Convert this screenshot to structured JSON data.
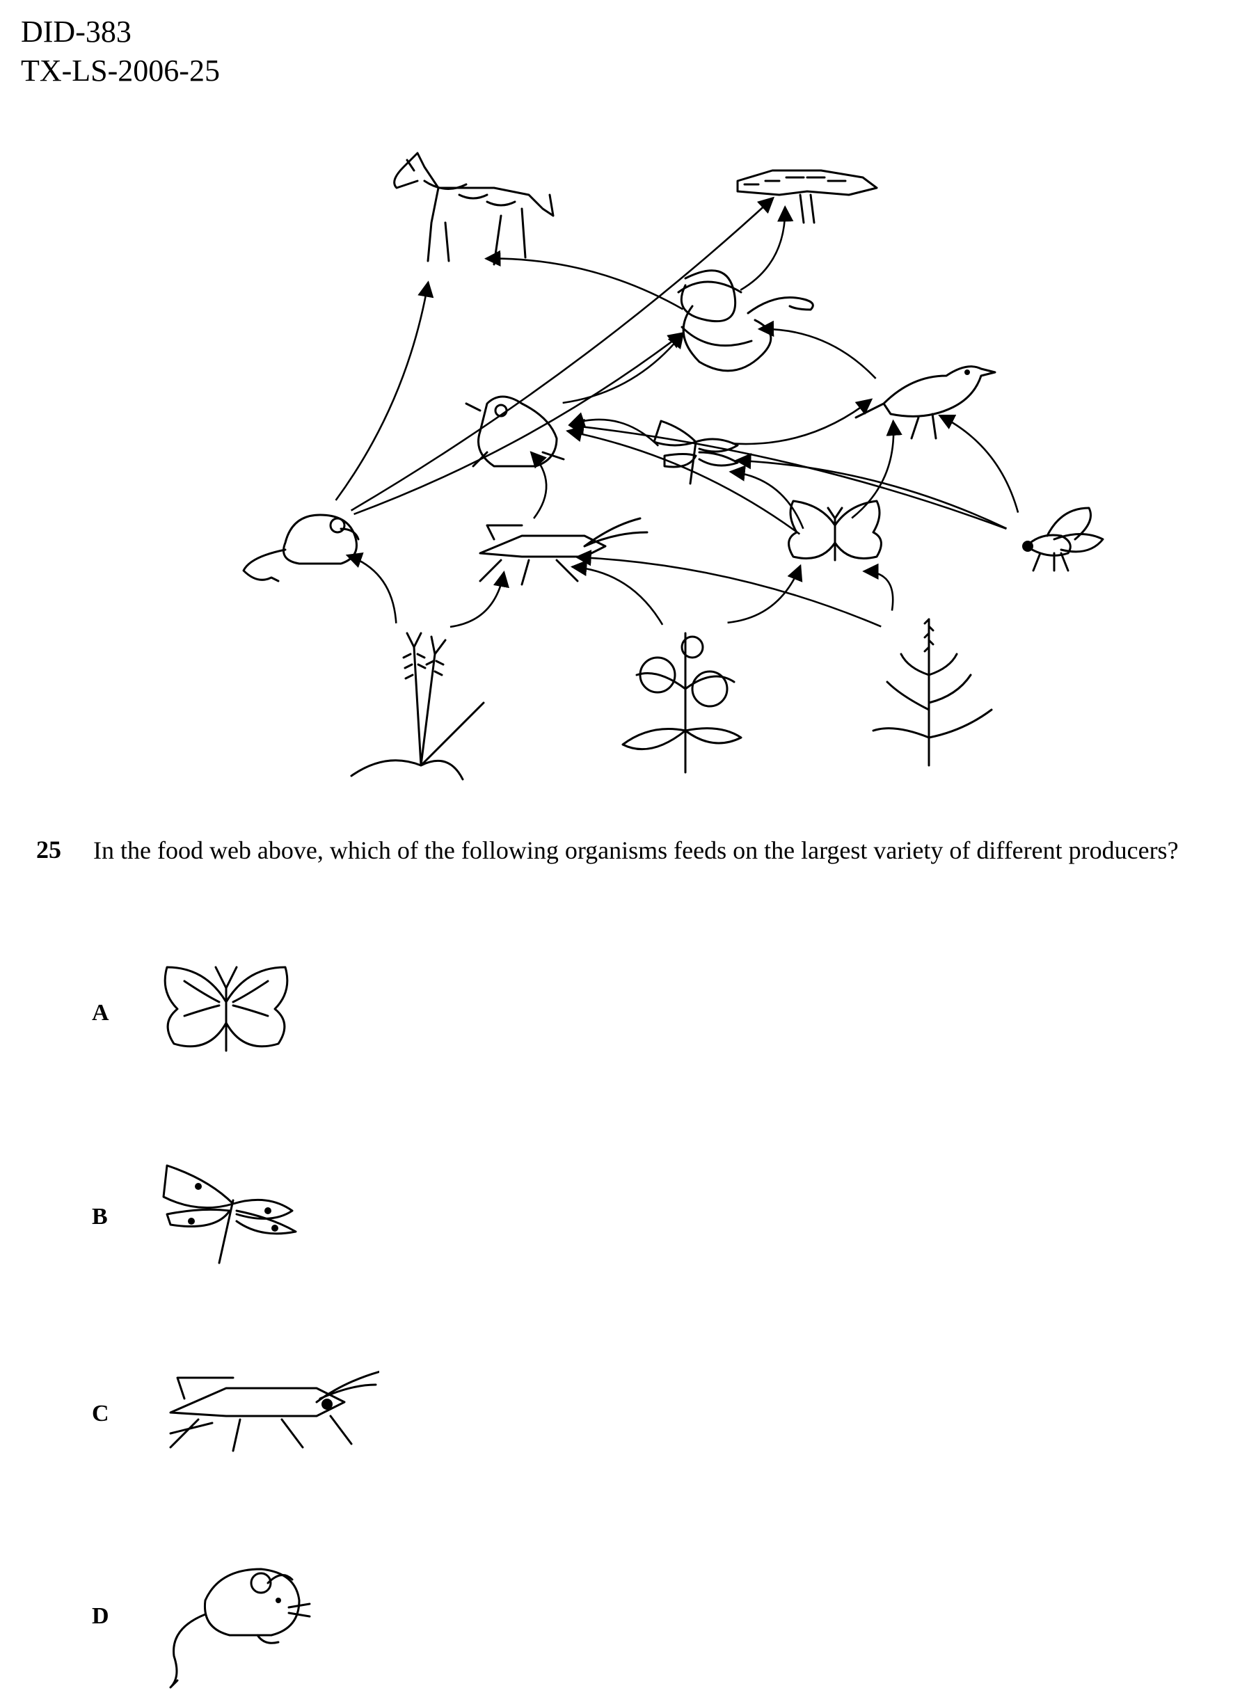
{
  "header": {
    "line1": "DID-383",
    "line2": "TX-LS-2006-25"
  },
  "figure": {
    "organisms": [
      {
        "id": "coyote",
        "icon": "coyote-icon"
      },
      {
        "id": "hawk",
        "icon": "hawk-icon"
      },
      {
        "id": "snake",
        "icon": "snake-icon"
      },
      {
        "id": "bird",
        "icon": "bird-icon"
      },
      {
        "id": "frog",
        "icon": "frog-icon"
      },
      {
        "id": "dragonfly",
        "icon": "dragonfly-icon"
      },
      {
        "id": "mouse",
        "icon": "mouse-icon"
      },
      {
        "id": "grasshopper",
        "icon": "grasshopper-icon"
      },
      {
        "id": "butterfly",
        "icon": "butterfly-icon"
      },
      {
        "id": "fly",
        "icon": "fly-icon"
      },
      {
        "id": "wheat",
        "icon": "wheat-icon"
      },
      {
        "id": "flower",
        "icon": "flower-icon"
      },
      {
        "id": "weed",
        "icon": "weed-icon"
      }
    ],
    "arrows": [
      [
        "mouse",
        "coyote"
      ],
      [
        "mouse",
        "hawk"
      ],
      [
        "mouse",
        "snake"
      ],
      [
        "snake",
        "coyote"
      ],
      [
        "snake",
        "hawk"
      ],
      [
        "bird",
        "snake"
      ],
      [
        "frog",
        "snake"
      ],
      [
        "dragonfly",
        "frog"
      ],
      [
        "dragonfly",
        "bird"
      ],
      [
        "grasshopper",
        "frog"
      ],
      [
        "butterfly",
        "frog"
      ],
      [
        "butterfly",
        "dragonfly"
      ],
      [
        "butterfly",
        "bird"
      ],
      [
        "fly",
        "frog"
      ],
      [
        "fly",
        "dragonfly"
      ],
      [
        "fly",
        "bird"
      ],
      [
        "wheat",
        "mouse"
      ],
      [
        "wheat",
        "grasshopper"
      ],
      [
        "flower",
        "grasshopper"
      ],
      [
        "flower",
        "butterfly"
      ],
      [
        "weed",
        "grasshopper"
      ],
      [
        "weed",
        "butterfly"
      ]
    ]
  },
  "question": {
    "number": "25",
    "text": "In the food web above, which of the following organisms feeds on the largest variety of different producers?"
  },
  "options": [
    {
      "letter": "A",
      "icon": "butterfly-icon"
    },
    {
      "letter": "B",
      "icon": "dragonfly-icon"
    },
    {
      "letter": "C",
      "icon": "grasshopper-icon"
    },
    {
      "letter": "D",
      "icon": "mouse-icon"
    }
  ]
}
